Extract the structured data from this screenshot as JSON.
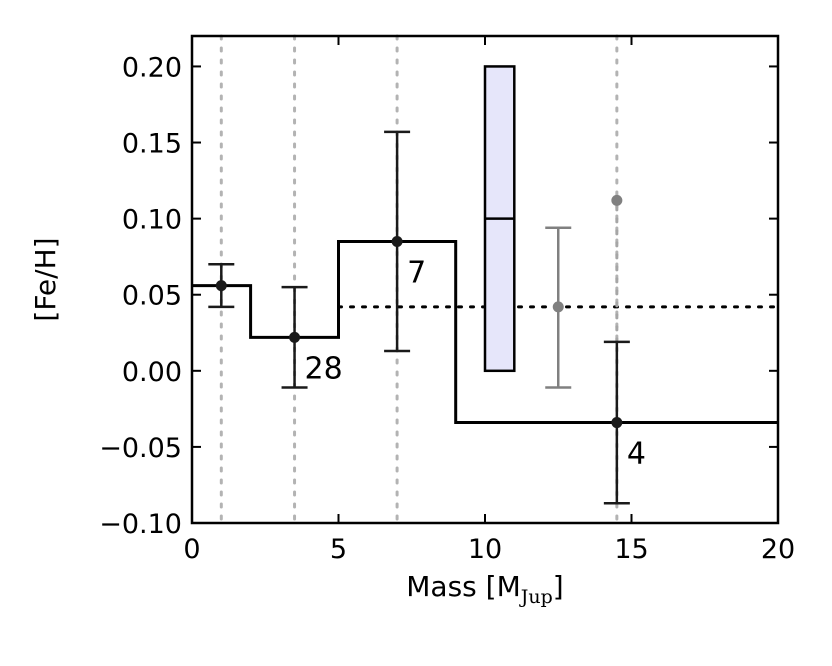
{
  "chart_data": {
    "type": "scatter",
    "xlabel": "Mass [M",
    "xlabel_sub": "Jup",
    "xlabel_close": "]",
    "ylabel": "[Fe/H]",
    "xlim": [
      0,
      20
    ],
    "ylim": [
      -0.1,
      0.22
    ],
    "xticks": [
      0,
      5,
      10,
      15,
      20
    ],
    "xtick_labels": [
      "0",
      "5",
      "10",
      "15",
      "20"
    ],
    "yticks": [
      -0.1,
      -0.05,
      0.0,
      0.05,
      0.1,
      0.15,
      0.2
    ],
    "ytick_labels": [
      "−0.10",
      "−0.05",
      "0.00",
      "0.05",
      "0.10",
      "0.15",
      "0.20"
    ],
    "grid": false,
    "vertical_dotted_lines_x": [
      1,
      3.5,
      7,
      14.5
    ],
    "step_line": {
      "color": "#000000",
      "segments": [
        {
          "x0": 0,
          "x1": 2,
          "y": 0.056
        },
        {
          "x0": 2,
          "x1": 5,
          "y": 0.022
        },
        {
          "x0": 5,
          "x1": 9,
          "y": 0.085
        },
        {
          "x0": 9,
          "x1": 20,
          "y": -0.034
        }
      ]
    },
    "points": [
      {
        "x": 1,
        "y": 0.056,
        "ylow": 0.042,
        "yhigh": 0.07,
        "color": "#1a1a1a",
        "label": ""
      },
      {
        "x": 3.5,
        "y": 0.022,
        "ylow": -0.011,
        "yhigh": 0.055,
        "color": "#1a1a1a",
        "label": "28"
      },
      {
        "x": 7,
        "y": 0.085,
        "ylow": 0.013,
        "yhigh": 0.157,
        "color": "#1a1a1a",
        "label": "7"
      },
      {
        "x": 14.5,
        "y": -0.034,
        "ylow": -0.087,
        "yhigh": 0.019,
        "color": "#1a1a1a",
        "label": "4"
      },
      {
        "x": 12.5,
        "y": 0.042,
        "ylow": -0.011,
        "yhigh": 0.094,
        "color": "#808080",
        "label": ""
      }
    ],
    "gray_point": {
      "x": 14.5,
      "y": 0.112,
      "color": "#808080"
    },
    "gray_dotted_stem": {
      "x": 14.5,
      "y0": 0.019,
      "y1": 0.112
    },
    "horizontal_dotted_line": {
      "x0": 5,
      "x1": 20,
      "y": 0.042
    },
    "box": {
      "x0": 10,
      "x1": 11,
      "ylow": 0.0,
      "ymid": 0.1,
      "yhigh": 0.2,
      "fill": "#e6e6fa",
      "stroke": "#000000"
    }
  }
}
